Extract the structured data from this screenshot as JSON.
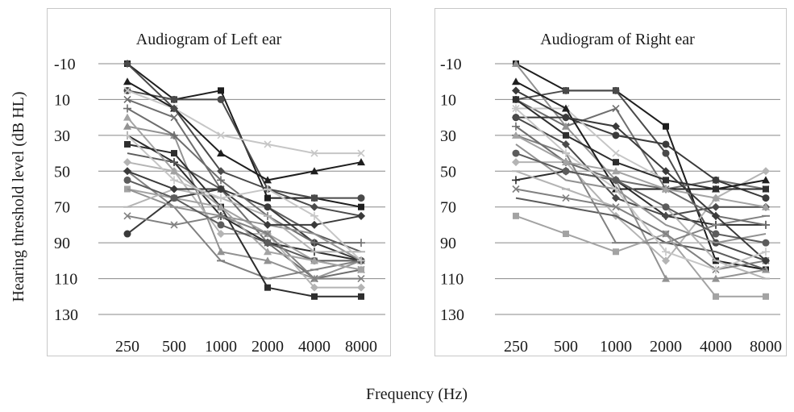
{
  "figure": {
    "ylabel": "Hearing threshold level (dB HL)",
    "xlabel": "Frequency (Hz)"
  },
  "chart_data": [
    {
      "type": "line",
      "title": "Audiogram of Left ear",
      "categories": [
        "250",
        "500",
        "1000",
        "2000",
        "4000",
        "8000"
      ],
      "ylim": [
        -10,
        130
      ],
      "y_inverted": true,
      "yticks": [
        -10,
        10,
        30,
        50,
        70,
        90,
        110,
        130
      ],
      "grid": true,
      "series": [
        {
          "values": [
            -10,
            10,
            5,
            65,
            65,
            70
          ]
        },
        {
          "values": [
            5,
            10,
            10,
            60,
            65,
            65
          ]
        },
        {
          "values": [
            10,
            20,
            60,
            90,
            110,
            105
          ]
        },
        {
          "values": [
            25,
            30,
            95,
            100,
            110,
            100
          ]
        },
        {
          "values": [
            45,
            50,
            85,
            85,
            115,
            115
          ]
        },
        {
          "values": [
            30,
            45,
            75,
            90,
            95,
            100
          ]
        },
        {
          "values": [
            40,
            45,
            60,
            70,
            85,
            95
          ]
        },
        {
          "values": [
            50,
            70,
            100,
            110,
            105,
            100
          ]
        },
        {
          "values": [
            60,
            65,
            70,
            85,
            100,
            105
          ]
        },
        {
          "values": [
            85,
            65,
            60,
            70,
            90,
            100
          ]
        },
        {
          "values": [
            5,
            15,
            30,
            35,
            40,
            40
          ]
        },
        {
          "values": [
            0,
            15,
            40,
            55,
            50,
            45
          ]
        },
        {
          "values": [
            -10,
            15,
            50,
            60,
            70,
            75
          ]
        },
        {
          "values": [
            15,
            30,
            55,
            75,
            90,
            90
          ]
        },
        {
          "values": [
            60,
            70,
            75,
            80,
            85,
            100
          ]
        },
        {
          "values": [
            70,
            60,
            65,
            75,
            95,
            95
          ]
        },
        {
          "values": [
            35,
            40,
            70,
            115,
            120,
            120
          ]
        },
        {
          "values": [
            55,
            65,
            80,
            90,
            100,
            100
          ]
        },
        {
          "values": [
            75,
            80,
            75,
            85,
            110,
            110
          ]
        },
        {
          "values": [
            20,
            50,
            70,
            95,
            100,
            105
          ]
        },
        {
          "values": [
            50,
            60,
            60,
            80,
            80,
            75
          ]
        },
        {
          "values": [
            30,
            55,
            65,
            60,
            75,
            100
          ]
        }
      ]
    },
    {
      "type": "line",
      "title": "Audiogram of Right ear",
      "categories": [
        "250",
        "500",
        "1000",
        "2000",
        "4000",
        "8000"
      ],
      "ylim": [
        -10,
        130
      ],
      "y_inverted": true,
      "yticks": [
        -10,
        10,
        30,
        50,
        70,
        90,
        110,
        130
      ],
      "grid": true,
      "series": [
        {
          "values": [
            -10,
            5,
            5,
            25,
            100,
            105
          ]
        },
        {
          "values": [
            10,
            5,
            5,
            40,
            90,
            100
          ]
        },
        {
          "values": [
            10,
            25,
            15,
            60,
            55,
            60
          ]
        },
        {
          "values": [
            -10,
            25,
            55,
            110,
            110,
            105
          ]
        },
        {
          "values": [
            45,
            45,
            75,
            100,
            65,
            50
          ]
        },
        {
          "values": [
            55,
            50,
            55,
            75,
            80,
            80
          ]
        },
        {
          "values": [
            65,
            70,
            75,
            90,
            95,
            105
          ]
        },
        {
          "values": [
            30,
            40,
            90,
            90,
            80,
            75
          ]
        },
        {
          "values": [
            75,
            85,
            95,
            85,
            120,
            120
          ]
        },
        {
          "values": [
            20,
            20,
            30,
            35,
            55,
            65
          ]
        },
        {
          "values": [
            15,
            15,
            40,
            55,
            60,
            60
          ]
        },
        {
          "values": [
            0,
            15,
            60,
            60,
            60,
            55
          ]
        },
        {
          "values": [
            20,
            35,
            65,
            75,
            70,
            70
          ]
        },
        {
          "values": [
            25,
            45,
            55,
            60,
            75,
            80
          ]
        },
        {
          "values": [
            35,
            55,
            60,
            80,
            90,
            85
          ]
        },
        {
          "values": [
            50,
            60,
            70,
            70,
            100,
            110
          ]
        },
        {
          "values": [
            10,
            30,
            45,
            55,
            60,
            60
          ]
        },
        {
          "values": [
            40,
            50,
            55,
            70,
            85,
            90
          ]
        },
        {
          "values": [
            60,
            65,
            70,
            85,
            105,
            100
          ]
        },
        {
          "values": [
            30,
            45,
            50,
            60,
            65,
            70
          ]
        },
        {
          "values": [
            5,
            20,
            25,
            50,
            75,
            100
          ]
        },
        {
          "values": [
            15,
            40,
            60,
            95,
            105,
            95
          ]
        }
      ]
    }
  ]
}
